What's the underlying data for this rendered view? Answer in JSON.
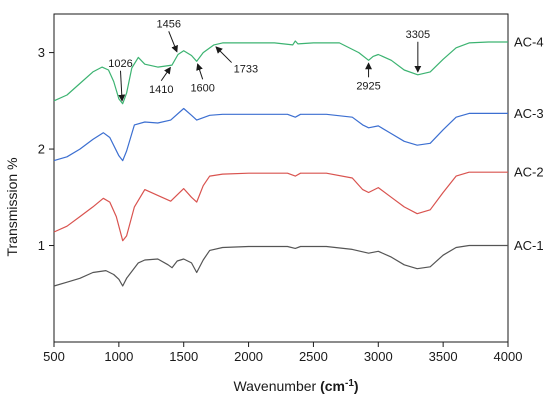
{
  "chart_data": {
    "type": "line",
    "title": "",
    "xlabel": "Wavenumber",
    "xlabel_unit": "cm",
    "xlabel_unit_exp": "-1",
    "ylabel": "Transmission %",
    "xlim": [
      500,
      4000
    ],
    "ylim": [
      0.0,
      3.4
    ],
    "grid": false,
    "legend": "labels at right end of each curve",
    "x_ticks": [
      500,
      1000,
      1500,
      2000,
      2500,
      3000,
      3500,
      4000
    ],
    "y_ticks": [
      1,
      2,
      3
    ],
    "series": [
      {
        "name": "AC-4",
        "color": "#3cb371",
        "points": [
          [
            500,
            2.5
          ],
          [
            600,
            2.56
          ],
          [
            700,
            2.68
          ],
          [
            800,
            2.8
          ],
          [
            870,
            2.85
          ],
          [
            920,
            2.82
          ],
          [
            960,
            2.7
          ],
          [
            1000,
            2.52
          ],
          [
            1030,
            2.47
          ],
          [
            1060,
            2.58
          ],
          [
            1100,
            2.84
          ],
          [
            1150,
            2.95
          ],
          [
            1200,
            2.88
          ],
          [
            1300,
            2.85
          ],
          [
            1410,
            2.87
          ],
          [
            1456,
            2.98
          ],
          [
            1500,
            3.02
          ],
          [
            1560,
            2.97
          ],
          [
            1600,
            2.91
          ],
          [
            1650,
            3.0
          ],
          [
            1733,
            3.08
          ],
          [
            1800,
            3.1
          ],
          [
            2000,
            3.1
          ],
          [
            2200,
            3.1
          ],
          [
            2340,
            3.08
          ],
          [
            2360,
            3.12
          ],
          [
            2380,
            3.09
          ],
          [
            2500,
            3.1
          ],
          [
            2700,
            3.1
          ],
          [
            2850,
            3.0
          ],
          [
            2925,
            2.92
          ],
          [
            2960,
            2.96
          ],
          [
            3000,
            2.98
          ],
          [
            3100,
            2.92
          ],
          [
            3200,
            2.82
          ],
          [
            3305,
            2.77
          ],
          [
            3400,
            2.8
          ],
          [
            3500,
            2.93
          ],
          [
            3600,
            3.05
          ],
          [
            3700,
            3.1
          ],
          [
            3850,
            3.11
          ],
          [
            4000,
            3.11
          ]
        ]
      },
      {
        "name": "AC-3",
        "color": "#3c6fd1",
        "points": [
          [
            500,
            1.88
          ],
          [
            600,
            1.92
          ],
          [
            700,
            2.0
          ],
          [
            800,
            2.1
          ],
          [
            880,
            2.17
          ],
          [
            930,
            2.12
          ],
          [
            1000,
            1.93
          ],
          [
            1030,
            1.88
          ],
          [
            1060,
            1.98
          ],
          [
            1120,
            2.25
          ],
          [
            1200,
            2.28
          ],
          [
            1300,
            2.27
          ],
          [
            1400,
            2.3
          ],
          [
            1500,
            2.42
          ],
          [
            1560,
            2.35
          ],
          [
            1600,
            2.3
          ],
          [
            1700,
            2.35
          ],
          [
            1800,
            2.36
          ],
          [
            2000,
            2.36
          ],
          [
            2300,
            2.36
          ],
          [
            2360,
            2.33
          ],
          [
            2400,
            2.36
          ],
          [
            2600,
            2.36
          ],
          [
            2800,
            2.33
          ],
          [
            2880,
            2.25
          ],
          [
            2925,
            2.22
          ],
          [
            3000,
            2.24
          ],
          [
            3100,
            2.16
          ],
          [
            3200,
            2.08
          ],
          [
            3300,
            2.04
          ],
          [
            3400,
            2.06
          ],
          [
            3500,
            2.2
          ],
          [
            3600,
            2.33
          ],
          [
            3700,
            2.37
          ],
          [
            4000,
            2.37
          ]
        ]
      },
      {
        "name": "AC-2",
        "color": "#d9534f",
        "points": [
          [
            500,
            1.14
          ],
          [
            600,
            1.2
          ],
          [
            700,
            1.3
          ],
          [
            800,
            1.4
          ],
          [
            880,
            1.49
          ],
          [
            930,
            1.45
          ],
          [
            980,
            1.3
          ],
          [
            1030,
            1.05
          ],
          [
            1060,
            1.1
          ],
          [
            1120,
            1.4
          ],
          [
            1200,
            1.58
          ],
          [
            1300,
            1.52
          ],
          [
            1400,
            1.46
          ],
          [
            1500,
            1.59
          ],
          [
            1560,
            1.5
          ],
          [
            1600,
            1.45
          ],
          [
            1650,
            1.62
          ],
          [
            1700,
            1.72
          ],
          [
            1800,
            1.74
          ],
          [
            2000,
            1.75
          ],
          [
            2300,
            1.75
          ],
          [
            2360,
            1.72
          ],
          [
            2400,
            1.75
          ],
          [
            2600,
            1.75
          ],
          [
            2800,
            1.7
          ],
          [
            2880,
            1.58
          ],
          [
            2925,
            1.55
          ],
          [
            3000,
            1.6
          ],
          [
            3100,
            1.5
          ],
          [
            3200,
            1.4
          ],
          [
            3300,
            1.33
          ],
          [
            3400,
            1.37
          ],
          [
            3500,
            1.55
          ],
          [
            3600,
            1.72
          ],
          [
            3700,
            1.76
          ],
          [
            4000,
            1.76
          ]
        ]
      },
      {
        "name": "AC-1",
        "color": "#555555",
        "points": [
          [
            500,
            0.58
          ],
          [
            600,
            0.62
          ],
          [
            700,
            0.66
          ],
          [
            800,
            0.72
          ],
          [
            900,
            0.74
          ],
          [
            960,
            0.7
          ],
          [
            1000,
            0.65
          ],
          [
            1030,
            0.58
          ],
          [
            1060,
            0.66
          ],
          [
            1150,
            0.82
          ],
          [
            1200,
            0.85
          ],
          [
            1300,
            0.86
          ],
          [
            1380,
            0.8
          ],
          [
            1410,
            0.77
          ],
          [
            1450,
            0.84
          ],
          [
            1500,
            0.86
          ],
          [
            1560,
            0.82
          ],
          [
            1600,
            0.72
          ],
          [
            1650,
            0.85
          ],
          [
            1700,
            0.95
          ],
          [
            1800,
            0.98
          ],
          [
            2000,
            0.99
          ],
          [
            2300,
            0.99
          ],
          [
            2360,
            0.97
          ],
          [
            2400,
            0.99
          ],
          [
            2600,
            0.99
          ],
          [
            2800,
            0.96
          ],
          [
            2925,
            0.92
          ],
          [
            3000,
            0.94
          ],
          [
            3100,
            0.88
          ],
          [
            3200,
            0.8
          ],
          [
            3300,
            0.76
          ],
          [
            3400,
            0.78
          ],
          [
            3500,
            0.9
          ],
          [
            3600,
            0.98
          ],
          [
            3700,
            1.0
          ],
          [
            4000,
            1.0
          ]
        ]
      }
    ],
    "annotations": [
      {
        "text": "1026",
        "x": 1026,
        "y": 2.47
      },
      {
        "text": "1456",
        "x": 1456,
        "y": 2.98
      },
      {
        "text": "1410",
        "x": 1410,
        "y": 2.87
      },
      {
        "text": "1600",
        "x": 1600,
        "y": 2.91
      },
      {
        "text": "1733",
        "x": 1733,
        "y": 3.08
      },
      {
        "text": "2925",
        "x": 2925,
        "y": 2.92
      },
      {
        "text": "3305",
        "x": 3305,
        "y": 2.77
      }
    ]
  }
}
